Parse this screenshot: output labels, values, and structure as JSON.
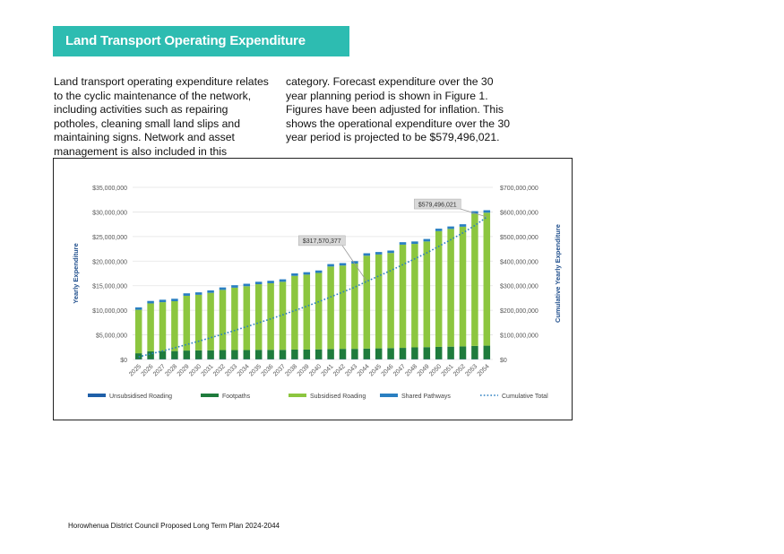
{
  "heading": "Land Transport Operating Expenditure",
  "paragraph": {
    "col1": "Land transport operating expenditure relates to the cyclic maintenance of the network, including activities such as repairing potholes, cleaning small land slips and maintaining signs. Network and asset management is also included in this",
    "col2": "category. Forecast expenditure over the 30 year planning period is shown in Figure 1. Figures have been adjusted for inflation. This shows the operational expenditure over the 30 year period is projected to be $579,496,021."
  },
  "footer": "Horowhenua District Council Proposed Long Term Plan 2024-2044",
  "colors": {
    "banner": "#2dbcb1",
    "unsubsidised": "#1f5fa8",
    "footpaths": "#1e7b3c",
    "subsidised": "#8cc63f",
    "shared": "#2a7fc1",
    "cumulative": "#2a7fc1"
  },
  "chart_data": {
    "type": "bar",
    "stacked": true,
    "title": "",
    "ylabel": "Yearly Expenditure",
    "y2label": "Cumulative Yearly Expenditure",
    "ylim": [
      0,
      35000000
    ],
    "y2lim": [
      0,
      700000000
    ],
    "yticks": [
      "$0",
      "$5,000,000",
      "$10,000,000",
      "$15,000,000",
      "$20,000,000",
      "$25,000,000",
      "$30,000,000",
      "$35,000,000"
    ],
    "y2ticks": [
      "$0",
      "$100,000,000",
      "$200,000,000",
      "$300,000,000",
      "$400,000,000",
      "$500,000,000",
      "$600,000,000",
      "$700,000,000"
    ],
    "grid": true,
    "legend_position": "bottom",
    "categories": [
      "2025",
      "2026",
      "2027",
      "2028",
      "2029",
      "2030",
      "2031",
      "2032",
      "2033",
      "2034",
      "2035",
      "2036",
      "2037",
      "2038",
      "2039",
      "2040",
      "2041",
      "2042",
      "2043",
      "2044",
      "2045",
      "2046",
      "2047",
      "2048",
      "2049",
      "2050",
      "2051",
      "2052",
      "2053",
      "2054"
    ],
    "series": [
      {
        "name": "Unsubsidised Roading",
        "axis": "left",
        "values": [
          60000,
          60000,
          60000,
          60000,
          60000,
          60000,
          60000,
          60000,
          60000,
          60000,
          60000,
          60000,
          60000,
          60000,
          60000,
          60000,
          60000,
          60000,
          60000,
          60000,
          60000,
          60000,
          60000,
          60000,
          60000,
          60000,
          60000,
          60000,
          60000,
          60000
        ]
      },
      {
        "name": "Footpaths",
        "axis": "left",
        "values": [
          1200000,
          1600000,
          1650000,
          1650000,
          1750000,
          1800000,
          1800000,
          1850000,
          1850000,
          1850000,
          1900000,
          1900000,
          1900000,
          1950000,
          1950000,
          2000000,
          2050000,
          2100000,
          2100000,
          2150000,
          2200000,
          2250000,
          2300000,
          2400000,
          2450000,
          2500000,
          2550000,
          2600000,
          2700000,
          2750000
        ]
      },
      {
        "name": "Subsidised Roading",
        "axis": "left",
        "values": [
          8840000,
          9740000,
          9940000,
          10140000,
          11140000,
          11290000,
          11690000,
          12240000,
          12690000,
          12990000,
          13340000,
          13540000,
          13840000,
          14990000,
          15240000,
          15540000,
          16790000,
          16940000,
          17340000,
          18890000,
          19090000,
          19340000,
          20990000,
          21040000,
          21490000,
          23540000,
          23940000,
          24340000,
          26890000,
          27040000
        ]
      },
      {
        "name": "Shared Pathways",
        "axis": "left",
        "values": [
          500000,
          500000,
          500000,
          500000,
          500000,
          500000,
          500000,
          500000,
          500000,
          500000,
          500000,
          500000,
          500000,
          500000,
          500000,
          500000,
          500000,
          500000,
          500000,
          500000,
          500000,
          500000,
          500000,
          500000,
          500000,
          500000,
          500000,
          500000,
          500000,
          500000
        ]
      },
      {
        "name": "Cumulative Total",
        "axis": "right",
        "type": "line",
        "style": "dotted",
        "values": [
          10600000,
          22600000,
          34810000,
          47220000,
          60670000,
          74320000,
          88370000,
          102920000,
          117940000,
          133350000,
          149150000,
          165150000,
          181450000,
          198950000,
          216700000,
          234800000,
          254500000,
          274100000,
          294000000,
          317570377,
          339500000,
          361650000,
          385500000,
          409500000,
          433500000,
          460100000,
          487150000,
          514550000,
          544700000,
          579496021
        ]
      }
    ],
    "annotations": [
      {
        "label": "$317,570,377",
        "category": "2044"
      },
      {
        "label": "$579,496,021",
        "category": "2054"
      }
    ]
  }
}
